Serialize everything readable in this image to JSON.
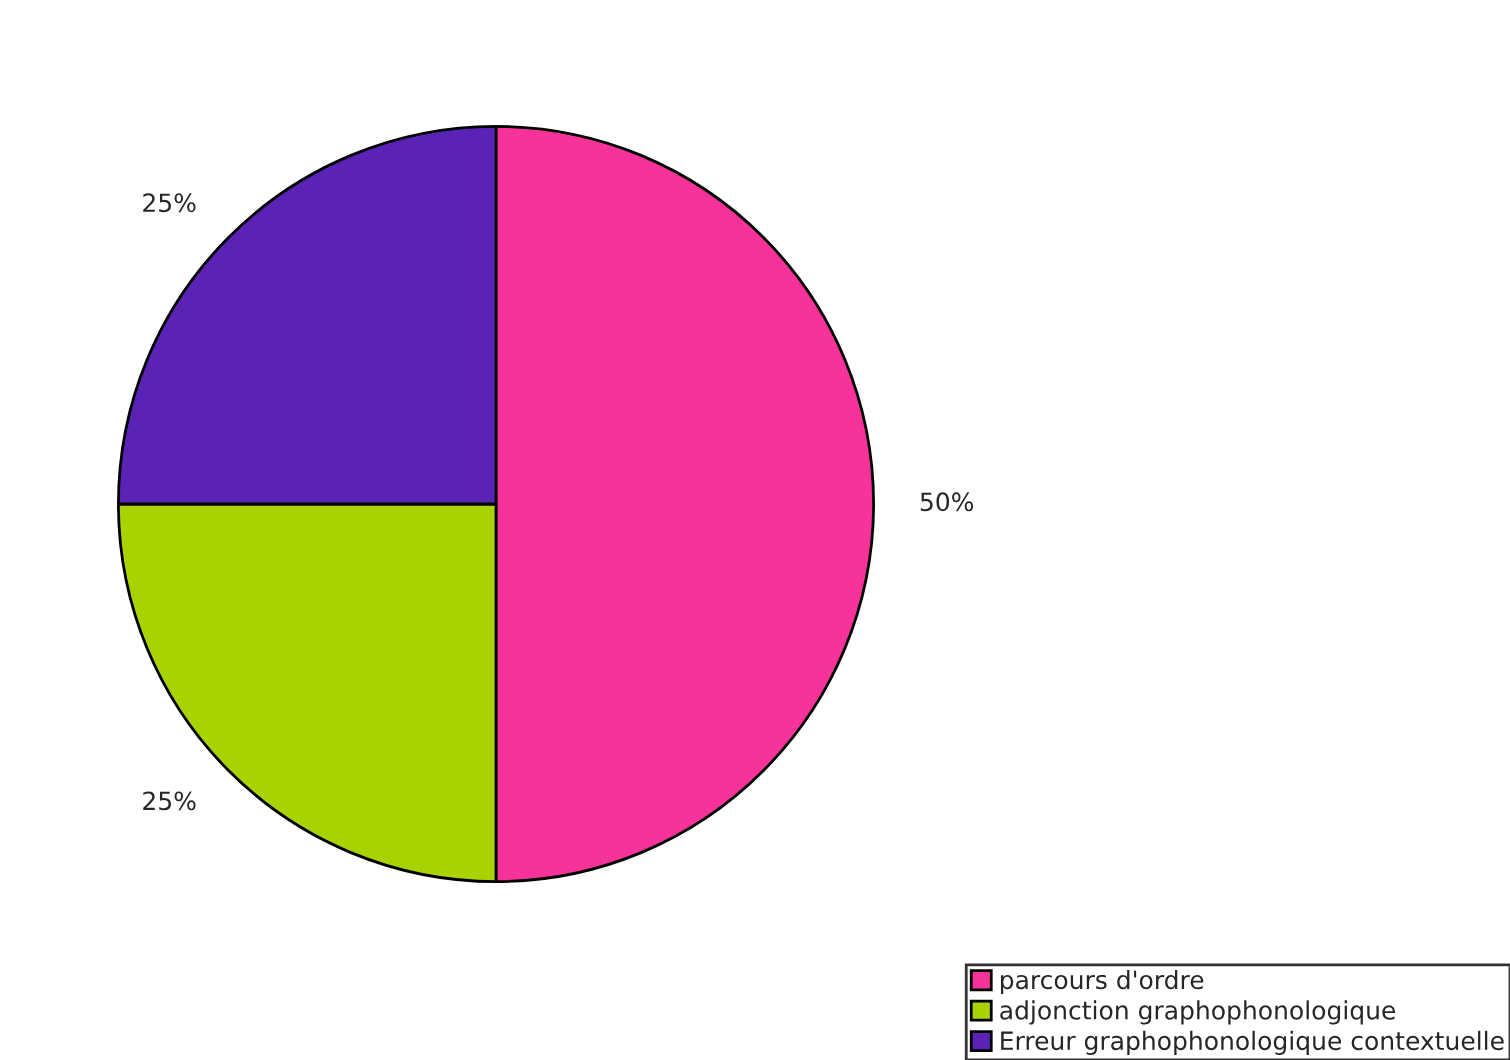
{
  "chart_data": {
    "type": "pie",
    "categories": [
      "parcours d'ordre",
      "adjonction graphophonologique",
      "Erreur graphophonologique contextuelle"
    ],
    "values": [
      50,
      25,
      25
    ],
    "colors": [
      "#f7329a",
      "#a9d300",
      "#5a23b5"
    ],
    "value_labels": [
      "50%",
      "25%",
      "25%"
    ],
    "legend": "bottom right"
  }
}
